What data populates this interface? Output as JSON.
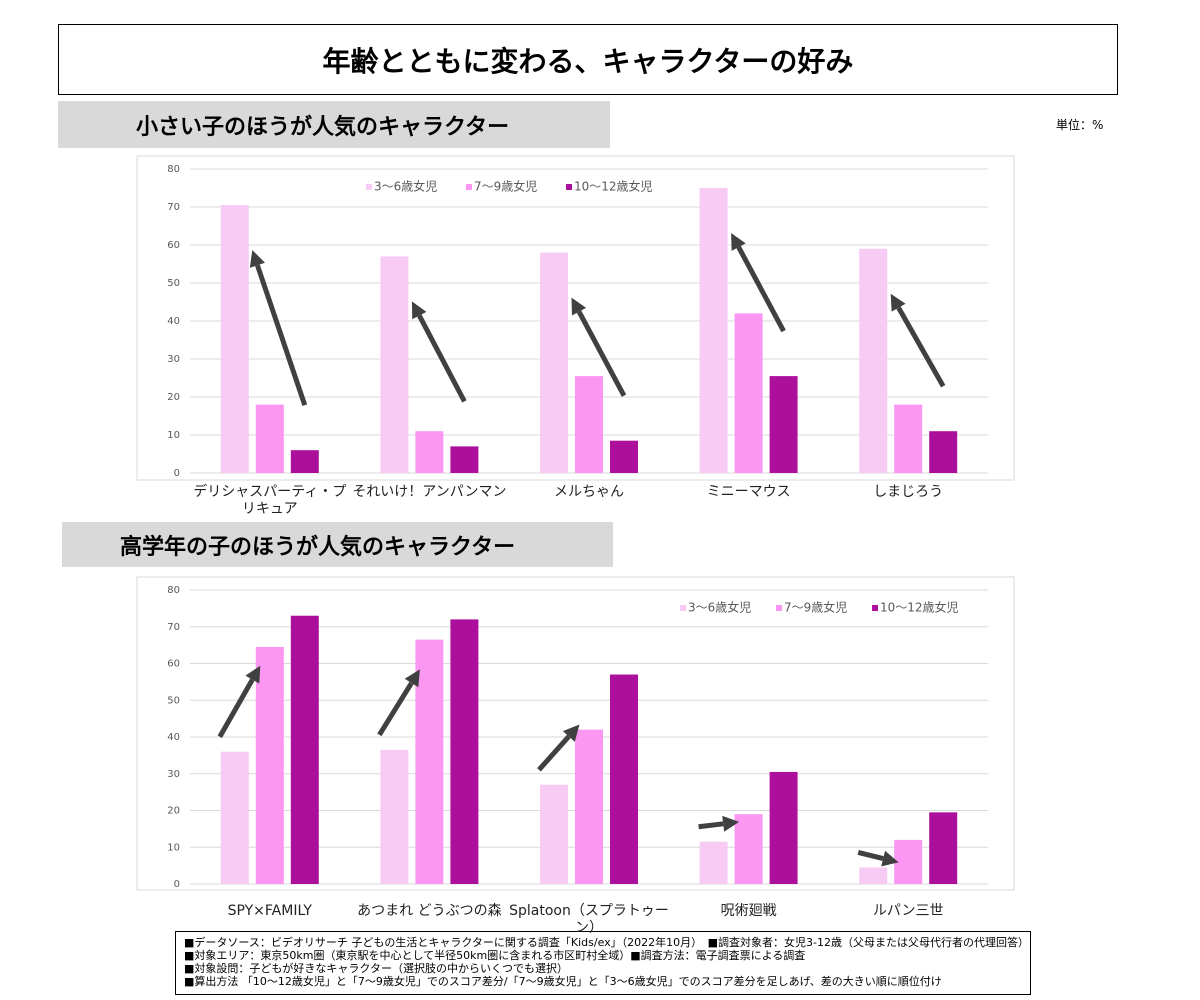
{
  "title": "年齢とともに変わる、キャラクターの好み",
  "unit": "単位：%",
  "chart_data": [
    {
      "type": "bar",
      "title": "小さい子のほうが人気のキャラクター",
      "categories": [
        "デリシャスパーティ・プリキュア",
        "それいけ！アンパンマン",
        "メルちゃん",
        "ミニーマウス",
        "しまじろう"
      ],
      "series": [
        {
          "name": "3～6歳女児",
          "color": "#f7cbf4",
          "values": [
            70.5,
            57,
            58,
            75,
            59
          ]
        },
        {
          "name": "7～9歳女児",
          "color": "#fb96f3",
          "values": [
            18,
            11,
            25.5,
            42,
            18
          ]
        },
        {
          "name": "10～12歳女児",
          "color": "#ab0f9b",
          "values": [
            6,
            7,
            8.5,
            25.5,
            11
          ]
        }
      ],
      "ylim": [
        0,
        80
      ],
      "yticks": [
        0,
        10,
        20,
        30,
        40,
        50,
        60,
        70,
        80
      ],
      "grid": true,
      "legend": "top-center"
    },
    {
      "type": "bar",
      "title": "高学年の子のほうが人気のキャラクター",
      "categories": [
        "SPY×FAMILY",
        "あつまれ どうぶつの森",
        "Splatoon（スプラトゥーン）",
        "呪術廻戦",
        "ルパン三世"
      ],
      "series": [
        {
          "name": "3～6歳女児",
          "color": "#f7cbf4",
          "values": [
            36,
            36.5,
            27,
            11.5,
            4.5
          ]
        },
        {
          "name": "7～9歳女児",
          "color": "#fb96f3",
          "values": [
            64.5,
            66.5,
            42,
            19,
            12
          ]
        },
        {
          "name": "10～12歳女児",
          "color": "#ab0f9b",
          "values": [
            73,
            72,
            57,
            30.5,
            19.5
          ]
        }
      ],
      "ylim": [
        0,
        80
      ],
      "yticks": [
        0,
        10,
        20,
        30,
        40,
        50,
        60,
        70,
        80
      ],
      "grid": true,
      "legend": "top-right"
    }
  ],
  "notes": [
    "■データソース：ビデオリサーチ 子どもの生活とキャラクターに関する調査「Kids/ex」（2022年10月）　■調査対象者：女児3-12歳（父母または父母代行者の代理回答）",
    "■対象エリア：東京50km圏（東京駅を中心として半径50km圏に含まれる市区町村全域）■調査方法：電子調査票による調査",
    "■対象設問：子どもが好きなキャラクター（選択肢の中からいくつでも選択）",
    "■算出方法 「10～12歳女児」と「7～9歳女児」でのスコア差分/「7～9歳女児」と「3～6歳女児」でのスコア差分を足しあげ、差の大きい順に順位付け"
  ]
}
